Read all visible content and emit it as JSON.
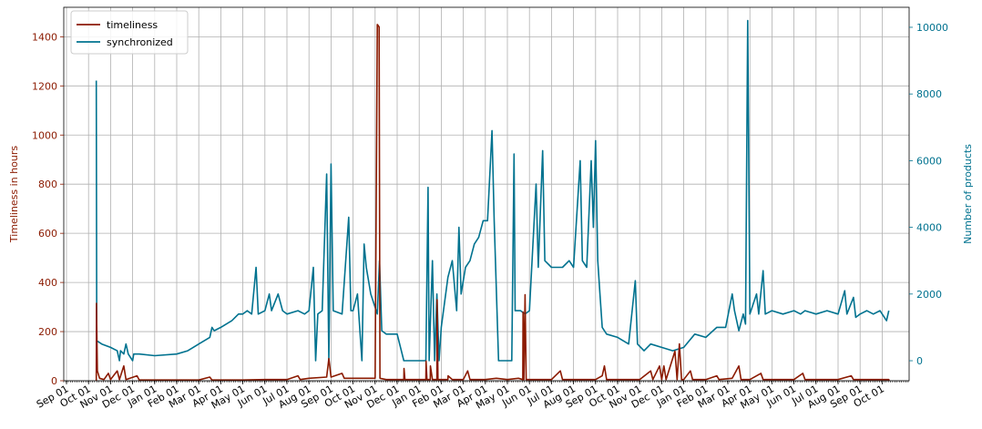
{
  "chart_data": {
    "type": "line",
    "grid": true,
    "legend_position": "top-left",
    "x_axis": {
      "ticks": [
        "Sep 01",
        "Oct 01",
        "Nov 01",
        "Dec 01",
        "Jan 01",
        "Feb 01",
        "Mar 01",
        "Apr 01",
        "May 01",
        "Jun 01",
        "Jul 01",
        "Aug 01",
        "Sep 01",
        "Oct 01",
        "Nov 01",
        "Dec 01",
        "Jan 01",
        "Feb 01",
        "Mar 01",
        "Apr 01",
        "May 01",
        "Jun 01",
        "Jul 01",
        "Aug 01",
        "Sep 01",
        "Oct 01",
        "Nov 01",
        "Dec 01",
        "Jan 01",
        "Feb 01",
        "Mar 01",
        "Apr 01",
        "May 01",
        "Jun 01",
        "Jul 01",
        "Aug 01",
        "Sep 01",
        "Oct 01"
      ]
    },
    "y_left": {
      "label": "Timeliness in hours",
      "range": [
        0,
        1520
      ],
      "ticks": [
        0,
        200,
        400,
        600,
        800,
        1000,
        1200,
        1400
      ],
      "color": "#8b1a00"
    },
    "y_right": {
      "label": "Number of products",
      "range": [
        -600,
        10600
      ],
      "ticks": [
        0,
        2000,
        4000,
        6000,
        8000,
        10000
      ],
      "color": "#00728f"
    },
    "series": [
      {
        "name": "timeliness",
        "axis": "left",
        "color": "#8b1a00",
        "points": [
          [
            1.35,
            0
          ],
          [
            1.36,
            315
          ],
          [
            1.4,
            40
          ],
          [
            1.5,
            10
          ],
          [
            1.7,
            5
          ],
          [
            1.9,
            30
          ],
          [
            2.0,
            5
          ],
          [
            2.3,
            40
          ],
          [
            2.4,
            5
          ],
          [
            2.6,
            60
          ],
          [
            2.7,
            5
          ],
          [
            3.2,
            20
          ],
          [
            3.3,
            3
          ],
          [
            4,
            3
          ],
          [
            5,
            3
          ],
          [
            6,
            3
          ],
          [
            6.5,
            15
          ],
          [
            6.6,
            3
          ],
          [
            7,
            3
          ],
          [
            8,
            3
          ],
          [
            9,
            5
          ],
          [
            10,
            5
          ],
          [
            10.5,
            20
          ],
          [
            10.6,
            5
          ],
          [
            11,
            10
          ],
          [
            11.8,
            15
          ],
          [
            11.9,
            90
          ],
          [
            12.0,
            15
          ],
          [
            12.5,
            30
          ],
          [
            12.6,
            10
          ],
          [
            13,
            10
          ],
          [
            14,
            10
          ],
          [
            14.1,
            1450
          ],
          [
            14.18,
            1440
          ],
          [
            14.22,
            10
          ],
          [
            14.5,
            5
          ],
          [
            15,
            5
          ],
          [
            15.3,
            5
          ],
          [
            15.31,
            50
          ],
          [
            15.35,
            5
          ],
          [
            16,
            5
          ],
          [
            16.3,
            5
          ],
          [
            16.31,
            80
          ],
          [
            16.35,
            5
          ],
          [
            16.5,
            5
          ],
          [
            16.51,
            60
          ],
          [
            16.6,
            5
          ],
          [
            16.8,
            5
          ],
          [
            16.81,
            330
          ],
          [
            16.85,
            5
          ],
          [
            17.3,
            5
          ],
          [
            17.31,
            20
          ],
          [
            17.5,
            5
          ],
          [
            18,
            5
          ],
          [
            18.2,
            40
          ],
          [
            18.3,
            5
          ],
          [
            19,
            5
          ],
          [
            19.5,
            10
          ],
          [
            20,
            5
          ],
          [
            20.5,
            10
          ],
          [
            20.7,
            5
          ],
          [
            20.71,
            280
          ],
          [
            20.75,
            5
          ],
          [
            20.8,
            350
          ],
          [
            20.85,
            5
          ],
          [
            21,
            5
          ],
          [
            22,
            5
          ],
          [
            22.4,
            40
          ],
          [
            22.5,
            5
          ],
          [
            23,
            5
          ],
          [
            24,
            5
          ],
          [
            24.3,
            20
          ],
          [
            24.4,
            60
          ],
          [
            24.5,
            5
          ],
          [
            25,
            5
          ],
          [
            26,
            5
          ],
          [
            26.5,
            40
          ],
          [
            26.6,
            5
          ],
          [
            26.9,
            60
          ],
          [
            27.0,
            5
          ],
          [
            27.1,
            60
          ],
          [
            27.2,
            5
          ],
          [
            27.6,
            120
          ],
          [
            27.7,
            5
          ],
          [
            27.8,
            150
          ],
          [
            27.9,
            5
          ],
          [
            28,
            5
          ],
          [
            28.3,
            40
          ],
          [
            28.4,
            5
          ],
          [
            29,
            5
          ],
          [
            29.5,
            20
          ],
          [
            29.6,
            5
          ],
          [
            30.2,
            10
          ],
          [
            30.5,
            60
          ],
          [
            30.6,
            5
          ],
          [
            31,
            5
          ],
          [
            31.5,
            30
          ],
          [
            31.6,
            5
          ],
          [
            32,
            5
          ],
          [
            33,
            5
          ],
          [
            33.4,
            30
          ],
          [
            33.5,
            5
          ],
          [
            34,
            5
          ],
          [
            35,
            5
          ],
          [
            35.6,
            20
          ],
          [
            35.7,
            5
          ],
          [
            36,
            5
          ],
          [
            37,
            5
          ],
          [
            37.3,
            5
          ],
          [
            37.31,
            0
          ]
        ]
      },
      {
        "name": "synchronized",
        "axis": "right",
        "color": "#00728f",
        "points": [
          [
            1.35,
            8400
          ],
          [
            1.37,
            600
          ],
          [
            1.6,
            500
          ],
          [
            2.0,
            400
          ],
          [
            2.3,
            300
          ],
          [
            2.4,
            0
          ],
          [
            2.45,
            300
          ],
          [
            2.6,
            200
          ],
          [
            2.7,
            500
          ],
          [
            2.8,
            200
          ],
          [
            3.0,
            0
          ],
          [
            3.05,
            200
          ],
          [
            3.3,
            200
          ],
          [
            4,
            150
          ],
          [
            5,
            200
          ],
          [
            5.5,
            300
          ],
          [
            6.0,
            500
          ],
          [
            6.5,
            700
          ],
          [
            6.6,
            1000
          ],
          [
            6.7,
            900
          ],
          [
            7,
            1000
          ],
          [
            7.5,
            1200
          ],
          [
            7.8,
            1400
          ],
          [
            8,
            1400
          ],
          [
            8.2,
            1500
          ],
          [
            8.4,
            1400
          ],
          [
            8.6,
            2800
          ],
          [
            8.7,
            1400
          ],
          [
            9.0,
            1500
          ],
          [
            9.2,
            2000
          ],
          [
            9.3,
            1500
          ],
          [
            9.6,
            2000
          ],
          [
            9.8,
            1500
          ],
          [
            10,
            1400
          ],
          [
            10.5,
            1500
          ],
          [
            10.8,
            1400
          ],
          [
            11.0,
            1500
          ],
          [
            11.2,
            2800
          ],
          [
            11.3,
            0
          ],
          [
            11.4,
            1400
          ],
          [
            11.6,
            1500
          ],
          [
            11.8,
            5600
          ],
          [
            11.9,
            0
          ],
          [
            12.0,
            5900
          ],
          [
            12.1,
            1500
          ],
          [
            12.5,
            1400
          ],
          [
            12.8,
            4300
          ],
          [
            12.9,
            1500
          ],
          [
            13.0,
            1500
          ],
          [
            13.2,
            2000
          ],
          [
            13.4,
            0
          ],
          [
            13.5,
            3500
          ],
          [
            13.6,
            2800
          ],
          [
            13.8,
            2000
          ],
          [
            14.0,
            1600
          ],
          [
            14.1,
            1400
          ],
          [
            14.2,
            3000
          ],
          [
            14.3,
            900
          ],
          [
            14.5,
            800
          ],
          [
            15.0,
            800
          ],
          [
            15.3,
            0
          ],
          [
            15.31,
            0
          ],
          [
            16,
            0
          ],
          [
            16.3,
            0
          ],
          [
            16.4,
            5200
          ],
          [
            16.45,
            0
          ],
          [
            16.6,
            3000
          ],
          [
            16.7,
            0
          ],
          [
            16.8,
            2000
          ],
          [
            16.9,
            0
          ],
          [
            17.0,
            1000
          ],
          [
            17.3,
            2500
          ],
          [
            17.5,
            3000
          ],
          [
            17.7,
            1500
          ],
          [
            17.8,
            4000
          ],
          [
            17.9,
            2000
          ],
          [
            18.1,
            2800
          ],
          [
            18.3,
            3000
          ],
          [
            18.5,
            3500
          ],
          [
            18.7,
            3700
          ],
          [
            18.9,
            4200
          ],
          [
            19.1,
            4200
          ],
          [
            19.3,
            6900
          ],
          [
            19.4,
            4200
          ],
          [
            19.6,
            0
          ],
          [
            19.61,
            0
          ],
          [
            20.2,
            0
          ],
          [
            20.3,
            6200
          ],
          [
            20.35,
            1500
          ],
          [
            20.6,
            1500
          ],
          [
            20.8,
            1400
          ],
          [
            21,
            1500
          ],
          [
            21.3,
            5300
          ],
          [
            21.4,
            2800
          ],
          [
            21.6,
            6300
          ],
          [
            21.7,
            3000
          ],
          [
            22,
            2800
          ],
          [
            22.5,
            2800
          ],
          [
            22.8,
            3000
          ],
          [
            23,
            2800
          ],
          [
            23.3,
            6000
          ],
          [
            23.4,
            3000
          ],
          [
            23.6,
            2800
          ],
          [
            23.8,
            6000
          ],
          [
            23.9,
            4000
          ],
          [
            24.0,
            6600
          ],
          [
            24.1,
            3000
          ],
          [
            24.2,
            2000
          ],
          [
            24.3,
            1000
          ],
          [
            24.5,
            800
          ],
          [
            25,
            700
          ],
          [
            25.5,
            500
          ],
          [
            25.8,
            2400
          ],
          [
            25.9,
            500
          ],
          [
            26.2,
            300
          ],
          [
            26.5,
            500
          ],
          [
            27,
            400
          ],
          [
            27.5,
            300
          ],
          [
            28,
            400
          ],
          [
            28.5,
            800
          ],
          [
            29,
            700
          ],
          [
            29.5,
            1000
          ],
          [
            29.9,
            1000
          ],
          [
            30.2,
            2000
          ],
          [
            30.3,
            1500
          ],
          [
            30.5,
            900
          ],
          [
            30.7,
            1400
          ],
          [
            30.8,
            1100
          ],
          [
            30.9,
            10200
          ],
          [
            31.0,
            1400
          ],
          [
            31.3,
            2000
          ],
          [
            31.4,
            1400
          ],
          [
            31.6,
            2700
          ],
          [
            31.7,
            1400
          ],
          [
            32.0,
            1500
          ],
          [
            32.5,
            1400
          ],
          [
            33,
            1500
          ],
          [
            33.3,
            1400
          ],
          [
            33.5,
            1500
          ],
          [
            34,
            1400
          ],
          [
            34.5,
            1500
          ],
          [
            35,
            1400
          ],
          [
            35.3,
            2100
          ],
          [
            35.4,
            1400
          ],
          [
            35.7,
            1900
          ],
          [
            35.8,
            1300
          ],
          [
            36.0,
            1400
          ],
          [
            36.3,
            1500
          ],
          [
            36.6,
            1400
          ],
          [
            36.9,
            1500
          ],
          [
            37.2,
            1200
          ],
          [
            37.3,
            1500
          ]
        ]
      }
    ]
  }
}
